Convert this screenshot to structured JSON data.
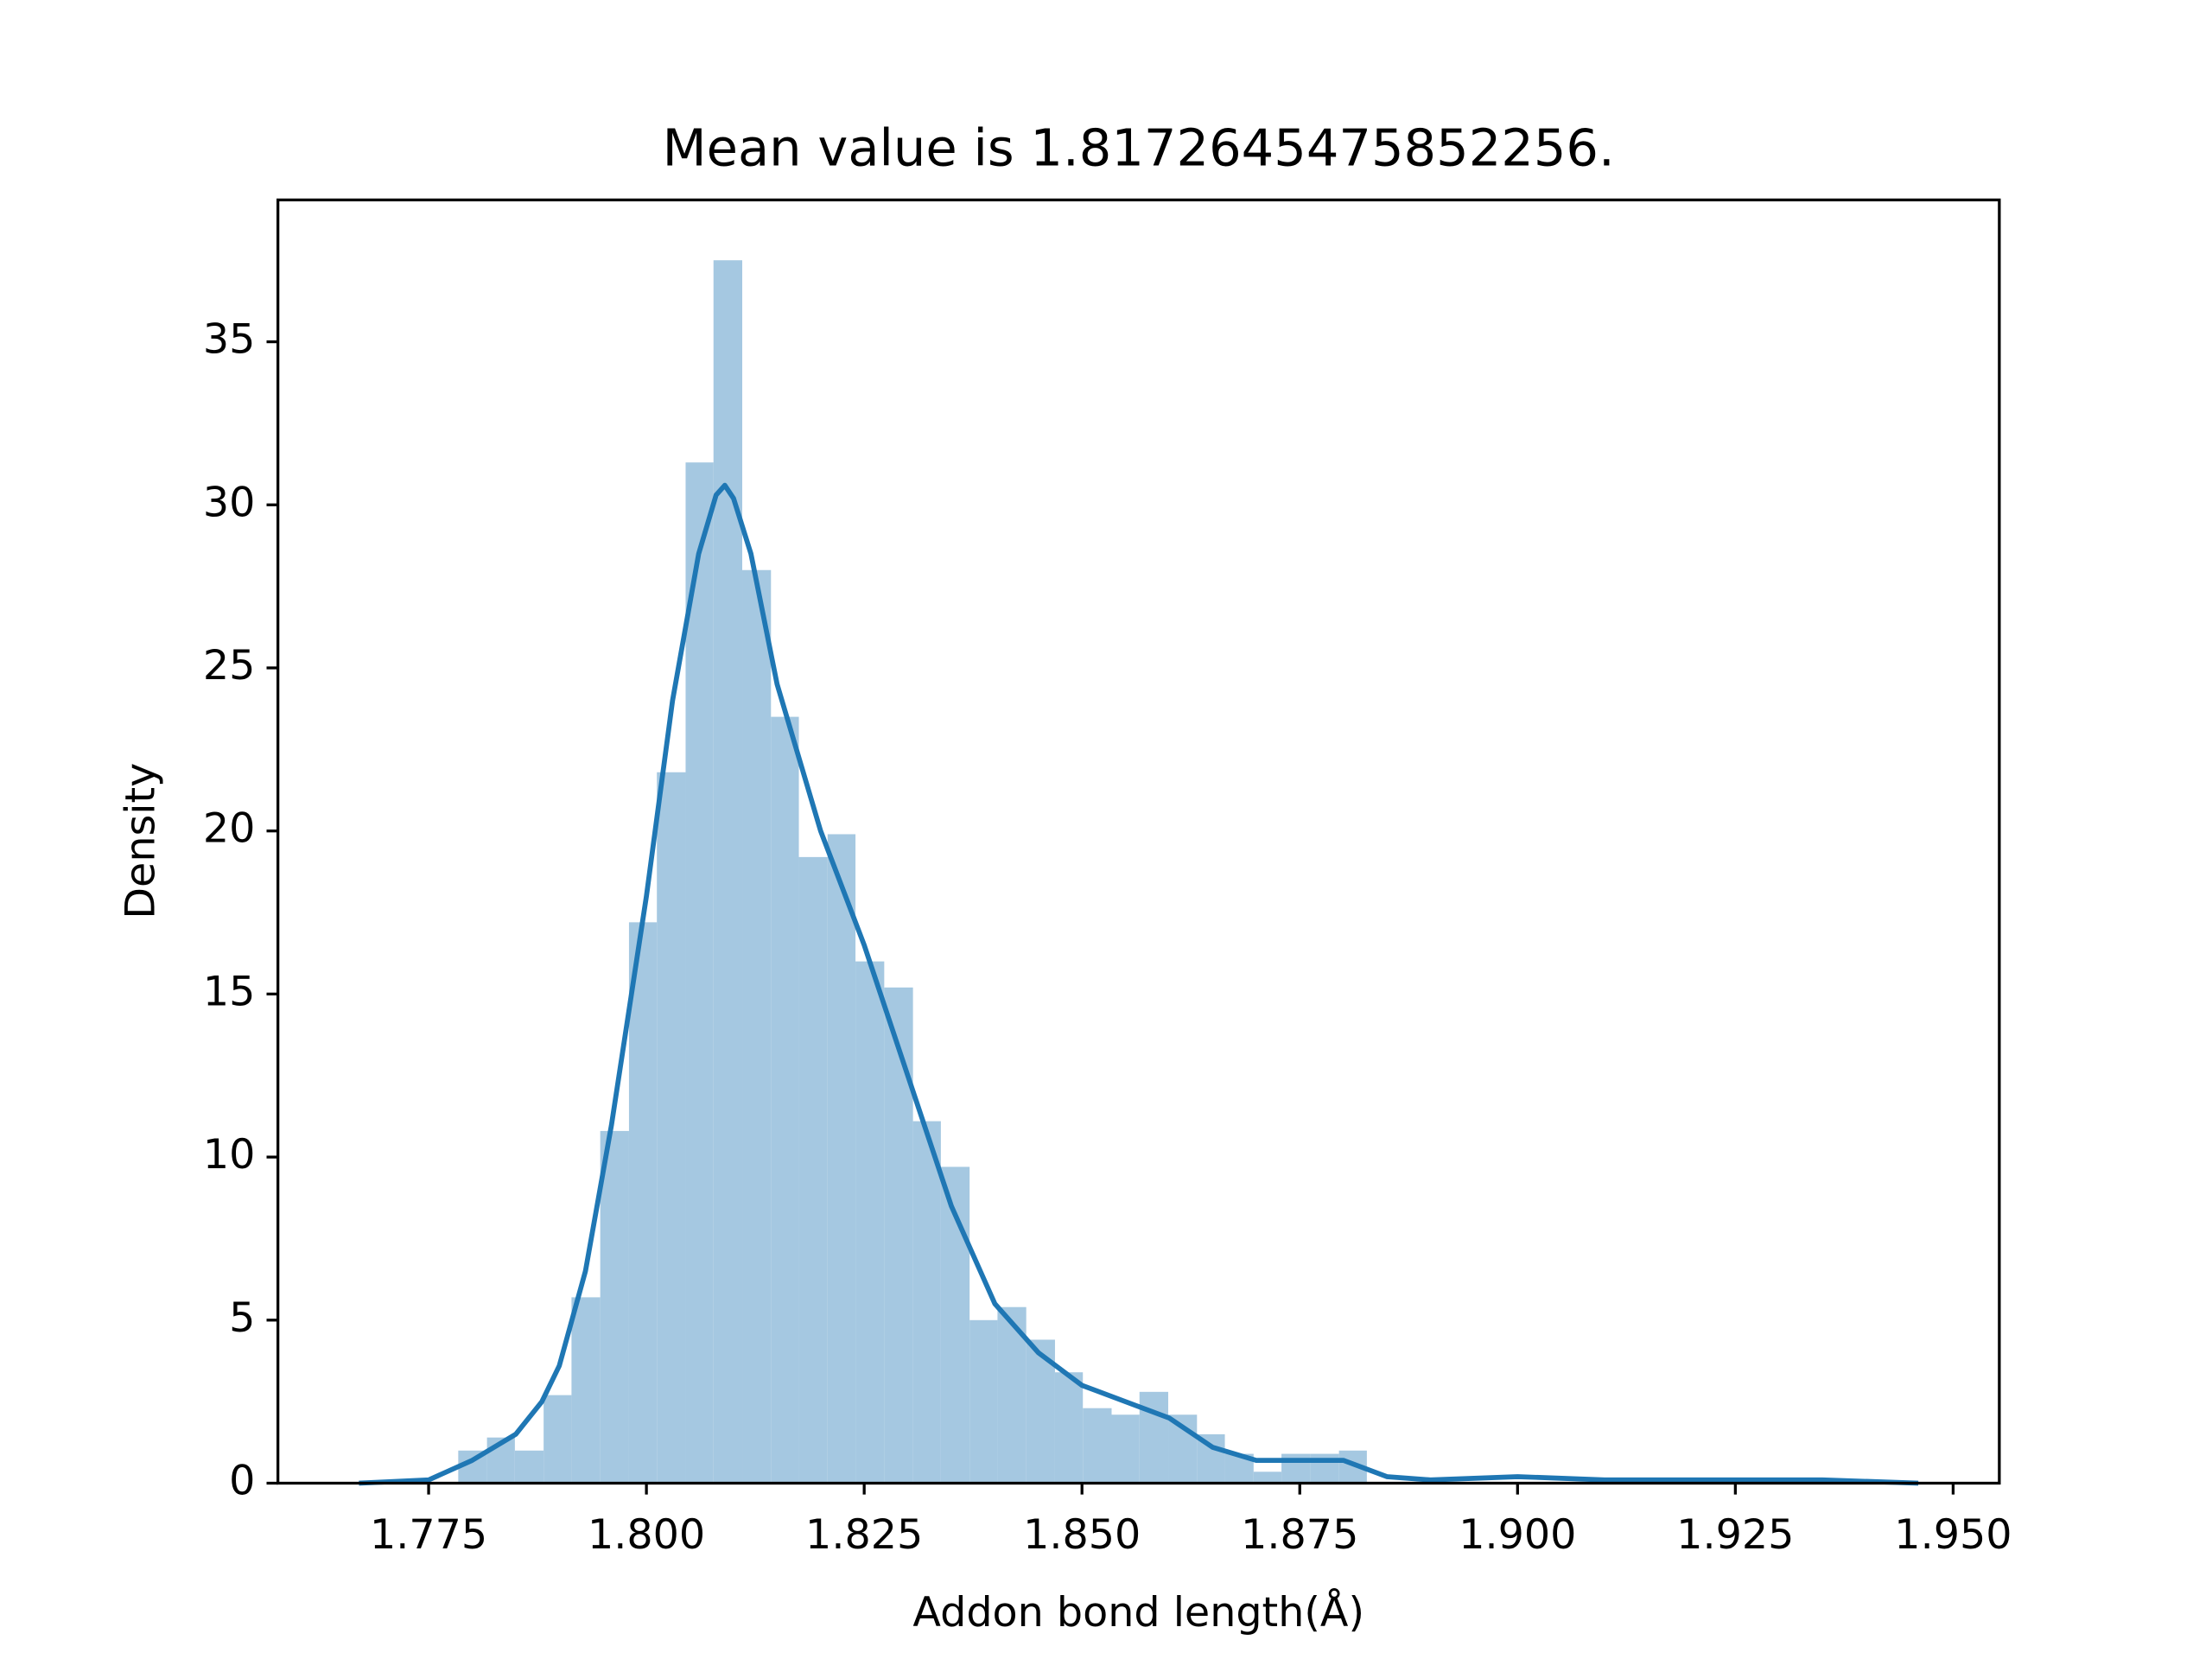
{
  "chart_data": {
    "type": "histogram",
    "title": "Mean value is 1.8172645475852256.",
    "x_label": "Addon bond length(Å)",
    "y_label": "Density",
    "bins": [
      1.7784,
      1.7817,
      1.7849,
      1.7882,
      1.7914,
      1.7947,
      1.798,
      1.8012,
      1.8045,
      1.8077,
      1.811,
      1.8143,
      1.8175,
      1.8208,
      1.824,
      1.8273,
      1.8306,
      1.8338,
      1.8371,
      1.8403,
      1.8436,
      1.8469,
      1.8501,
      1.8534,
      1.8566,
      1.8599,
      1.8632,
      1.8664,
      1.8697,
      1.8729,
      1.8762,
      1.8795,
      1.8827,
      1.886,
      1.8892,
      1.8925,
      1.8958,
      1.899,
      1.9023,
      1.9055,
      1.9088,
      1.9121,
      1.9153,
      1.9186,
      1.9218,
      1.9251,
      1.9284,
      1.9316,
      1.9349,
      1.9381,
      1.9414
    ],
    "values": [
      1.0,
      1.4,
      1.0,
      2.7,
      5.7,
      10.8,
      17.2,
      21.8,
      31.3,
      37.5,
      28.0,
      23.5,
      19.2,
      19.9,
      16.0,
      15.2,
      11.1,
      9.7,
      5.0,
      5.4,
      4.4,
      3.4,
      2.3,
      2.1,
      2.8,
      2.1,
      1.5,
      0.9,
      0.35,
      0.9,
      0.9,
      1.0,
      0,
      0,
      0,
      0,
      0,
      0,
      0,
      0,
      0,
      0,
      0,
      0,
      0,
      0,
      0,
      0,
      0,
      0
    ],
    "color": "#a5c8e1",
    "kde": {
      "color": "#1f77b4",
      "x": [
        1.767,
        1.775,
        1.78,
        1.785,
        1.788,
        1.79,
        1.793,
        1.796,
        1.8,
        1.803,
        1.806,
        1.808,
        1.809,
        1.81,
        1.812,
        1.815,
        1.82,
        1.825,
        1.83,
        1.835,
        1.84,
        1.845,
        1.85,
        1.855,
        1.86,
        1.865,
        1.87,
        1.875,
        1.88,
        1.885,
        1.89,
        1.9,
        1.91,
        1.92,
        1.93,
        1.935,
        1.946
      ],
      "y": [
        0,
        0.1,
        0.7,
        1.5,
        2.5,
        3.6,
        6.5,
        11,
        18,
        24,
        28.5,
        30.3,
        30.6,
        30.2,
        28.5,
        24.5,
        20,
        16.5,
        12.5,
        8.5,
        5.5,
        4,
        3,
        2.5,
        2,
        1.1,
        0.7,
        0.7,
        0.7,
        0.2,
        0.1,
        0.2,
        0.1,
        0.1,
        0.1,
        0.1,
        0
      ]
    },
    "xlim": [
      1.7577,
      1.9553
    ],
    "ylim": [
      0,
      39.35
    ],
    "xticks": [
      1.775,
      {
        "value": 1.8,
        "label": "1.800"
      },
      1.825,
      {
        "value": 1.85,
        "label": "1.850"
      },
      1.875,
      {
        "value": 1.9,
        "label": "1.900"
      },
      1.925,
      {
        "value": 1.95,
        "label": "1.950"
      }
    ],
    "yticks": [
      0,
      5,
      10,
      15,
      20,
      25,
      30,
      35
    ]
  }
}
